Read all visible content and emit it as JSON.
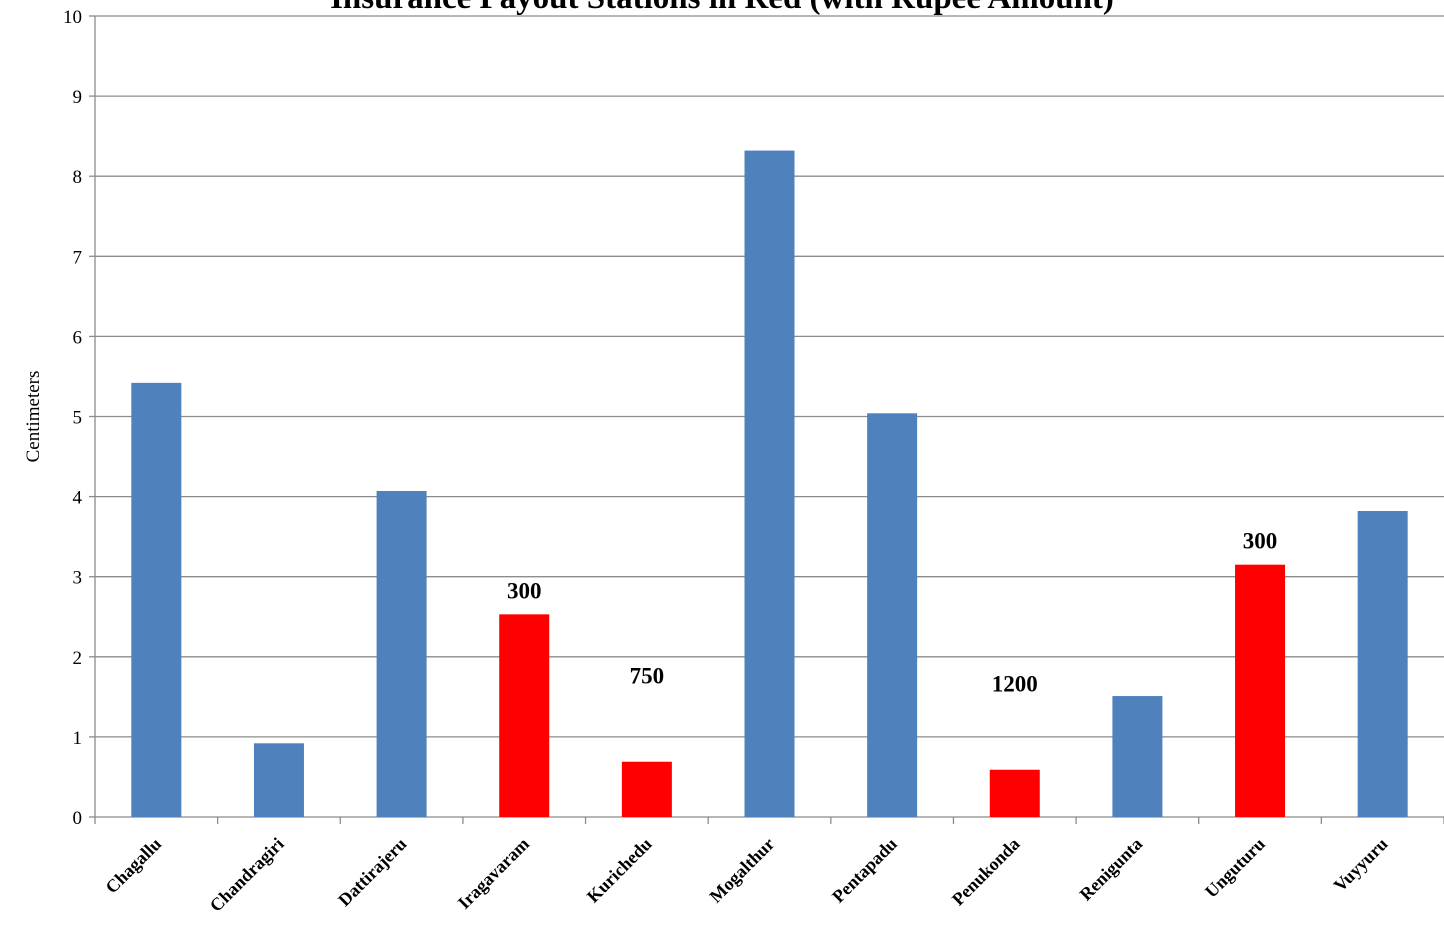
{
  "chart_data": {
    "type": "bar",
    "title": "Insurance Payout Stations in Red (with Rupee Amount)",
    "xlabel": "",
    "ylabel": "Centimeters",
    "ylim": [
      0,
      10
    ],
    "yticks": [
      0,
      1,
      2,
      3,
      4,
      5,
      6,
      7,
      8,
      9,
      10
    ],
    "grid": true,
    "legend": "none",
    "categories": [
      "Chagallu",
      "Chandragiri",
      "Dattirajeru",
      "Iragavaram",
      "Kurichedu",
      "Mogalthur",
      "Pentapadu",
      "Penukonda",
      "Renigunta",
      "Unguturu",
      "Vuyyuru"
    ],
    "values": [
      5.42,
      0.92,
      4.07,
      2.53,
      0.69,
      8.32,
      5.04,
      0.59,
      1.51,
      3.15,
      3.82
    ],
    "payout_stations": [
      false,
      false,
      false,
      true,
      true,
      false,
      false,
      true,
      false,
      true,
      false
    ],
    "annotations": [
      {
        "category": "Iragavaram",
        "text": "300"
      },
      {
        "category": "Kurichedu",
        "text": "750"
      },
      {
        "category": "Penukonda",
        "text": "1200"
      },
      {
        "category": "Unguturu",
        "text": "300"
      }
    ],
    "colors": {
      "normal": "#4f81bd",
      "payout": "#ff0000",
      "grid": "#8c8c8c",
      "axis": "#8c8c8c",
      "text": "#000000"
    }
  }
}
